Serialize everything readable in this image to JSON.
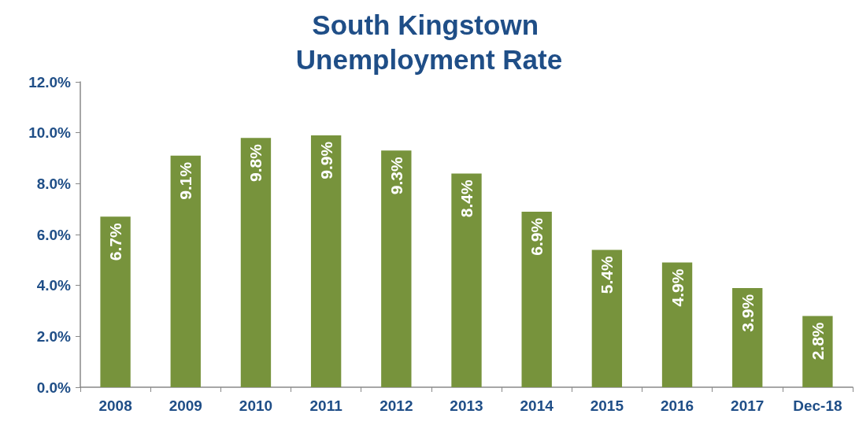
{
  "chart_data": {
    "type": "bar",
    "title": "South Kingstown Unemployment Rate",
    "categories": [
      "2008",
      "2009",
      "2010",
      "2011",
      "2012",
      "2013",
      "2014",
      "2015",
      "2016",
      "2017",
      "Dec-18"
    ],
    "values": [
      6.7,
      9.1,
      9.8,
      9.9,
      9.3,
      8.4,
      6.9,
      5.4,
      4.9,
      3.9,
      2.8
    ],
    "value_labels": [
      "6.7%",
      "9.1%",
      "9.8%",
      "9.9%",
      "9.3%",
      "8.4%",
      "6.9%",
      "5.4%",
      "4.9%",
      "3.9%",
      "2.8%"
    ],
    "color": "#77933c",
    "ylim": [
      0,
      12
    ],
    "yticks": [
      {
        "value": 0,
        "label": "0.0%"
      },
      {
        "value": 2,
        "label": "2.0%"
      },
      {
        "value": 4,
        "label": "4.0%"
      },
      {
        "value": 6,
        "label": "6.0%"
      },
      {
        "value": 8,
        "label": "8.0%"
      },
      {
        "value": 10,
        "label": "10.0%"
      },
      {
        "value": 12,
        "label": "12.0%"
      }
    ],
    "grid": false
  }
}
